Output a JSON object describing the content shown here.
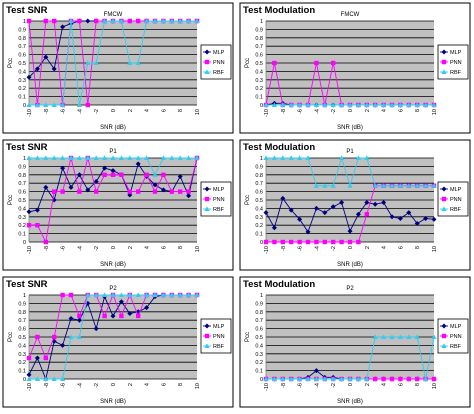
{
  "chart_data": [
    {
      "type": "line",
      "title": "Test SNR",
      "subtitle": "FMCW",
      "xlabel": "SNR (dB)",
      "ylabel": "Pcc",
      "x": [
        -10,
        -9,
        -8,
        -7,
        -6,
        -5,
        -4,
        -3,
        -2,
        -1,
        0,
        1,
        2,
        3,
        4,
        5,
        6,
        7,
        8,
        9,
        10
      ],
      "ylim": [
        0,
        1
      ],
      "yticks": [
        0,
        0.1,
        0.2,
        0.3,
        0.4,
        0.5,
        0.6,
        0.7,
        0.8,
        0.9,
        1
      ],
      "grid": true,
      "legend": "right",
      "series": [
        {
          "name": "MLP",
          "values": [
            0.33,
            0.43,
            0.57,
            0.43,
            0.93,
            0.97,
            1,
            1,
            1,
            1,
            1,
            1,
            1,
            1,
            1,
            1,
            1,
            1,
            1,
            1,
            1
          ]
        },
        {
          "name": "PNN",
          "values": [
            1,
            0,
            1,
            1,
            0,
            1,
            1,
            0,
            1,
            1,
            1,
            1,
            1,
            1,
            1,
            1,
            1,
            1,
            1,
            1,
            1
          ]
        },
        {
          "name": "RBF",
          "values": [
            0,
            0,
            0,
            0,
            0,
            1,
            0,
            0.5,
            0.5,
            1,
            1,
            1,
            0.5,
            0.5,
            1,
            1,
            1,
            1,
            1,
            1,
            1
          ]
        }
      ]
    },
    {
      "type": "line",
      "title": "Test Modulation",
      "subtitle": "FMCW",
      "xlabel": "SNR (dB)",
      "ylabel": "Pcc",
      "x": [
        -10,
        -9,
        -8,
        -7,
        -6,
        -5,
        -4,
        -3,
        -2,
        -1,
        0,
        1,
        2,
        3,
        4,
        5,
        6,
        7,
        8,
        9,
        10
      ],
      "ylim": [
        0,
        1
      ],
      "yticks": [
        0,
        0.1,
        0.2,
        0.3,
        0.4,
        0.5,
        0.6,
        0.7,
        0.8,
        0.9,
        1
      ],
      "grid": true,
      "legend": "right",
      "series": [
        {
          "name": "MLP",
          "values": [
            0,
            0.02,
            0.02,
            0,
            0,
            0,
            0,
            0,
            0,
            0,
            0,
            0,
            0,
            0,
            0,
            0,
            0,
            0,
            0,
            0,
            0
          ]
        },
        {
          "name": "PNN",
          "values": [
            0,
            0.5,
            0,
            0,
            0,
            0,
            0.5,
            0,
            0.5,
            0,
            0,
            0,
            0,
            0,
            0,
            0,
            0,
            0,
            0,
            0,
            0
          ]
        },
        {
          "name": "RBF",
          "values": [
            0,
            0,
            0,
            0,
            0,
            0,
            0,
            0,
            0,
            0,
            0,
            0,
            0,
            0,
            0,
            0,
            0,
            0,
            0,
            0,
            0
          ]
        }
      ]
    },
    {
      "type": "line",
      "title": "Test SNR",
      "subtitle": "P1",
      "xlabel": "SNR (dB)",
      "ylabel": "Pcc",
      "x": [
        -10,
        -9,
        -8,
        -7,
        -6,
        -5,
        -4,
        -3,
        -2,
        -1,
        0,
        1,
        2,
        3,
        4,
        5,
        6,
        7,
        8,
        9,
        10
      ],
      "ylim": [
        0,
        1
      ],
      "yticks": [
        0,
        0.1,
        0.2,
        0.3,
        0.4,
        0.5,
        0.6,
        0.7,
        0.8,
        0.9,
        1
      ],
      "grid": true,
      "legend": "right",
      "series": [
        {
          "name": "MLP",
          "values": [
            0.36,
            0.38,
            0.65,
            0.5,
            0.88,
            0.65,
            0.8,
            0.62,
            0.72,
            0.88,
            0.85,
            0.8,
            0.56,
            0.93,
            0.78,
            0.68,
            0.62,
            0.6,
            0.78,
            0.55,
            1
          ]
        },
        {
          "name": "PNN",
          "values": [
            0.2,
            0.2,
            0,
            0.6,
            0.6,
            1,
            0.6,
            1,
            0.6,
            0.8,
            0.8,
            0.8,
            0.6,
            0.6,
            0.8,
            0.6,
            0.8,
            0.6,
            0.6,
            0.6,
            1
          ]
        },
        {
          "name": "RBF",
          "values": [
            1,
            1,
            1,
            1,
            1,
            1,
            1,
            1,
            1,
            1,
            1,
            1,
            1,
            1,
            1,
            0.8,
            1,
            1,
            1,
            1,
            1
          ]
        }
      ]
    },
    {
      "type": "line",
      "title": "Test Modulation",
      "subtitle": "P1",
      "xlabel": "SNR (dB)",
      "ylabel": "Pcc",
      "x": [
        -10,
        -9,
        -8,
        -7,
        -6,
        -5,
        -4,
        -3,
        -2,
        -1,
        0,
        1,
        2,
        3,
        4,
        5,
        6,
        7,
        8,
        9,
        10
      ],
      "ylim": [
        0,
        1
      ],
      "yticks": [
        0,
        0.1,
        0.2,
        0.3,
        0.4,
        0.5,
        0.6,
        0.7,
        0.8,
        0.9,
        1
      ],
      "grid": true,
      "legend": "right",
      "series": [
        {
          "name": "MLP",
          "values": [
            0.35,
            0.17,
            0.52,
            0.38,
            0.27,
            0.12,
            0.4,
            0.35,
            0.42,
            0.47,
            0.13,
            0.33,
            0.47,
            0.45,
            0.47,
            0.3,
            0.28,
            0.35,
            0.22,
            0.28,
            0.27
          ]
        },
        {
          "name": "PNN",
          "values": [
            0,
            0,
            0,
            0,
            0,
            0,
            0,
            0,
            0,
            0,
            0,
            0,
            0.33,
            0.67,
            0.67,
            0.67,
            0.67,
            0.67,
            0.67,
            0.67,
            0.67
          ]
        },
        {
          "name": "RBF",
          "values": [
            1,
            1,
            1,
            1,
            1,
            1,
            0.67,
            0.67,
            0.67,
            1,
            0.67,
            1,
            1,
            0.67,
            0.67,
            0.67,
            0.67,
            0.67,
            0.67,
            0.67,
            0.67
          ]
        }
      ]
    },
    {
      "type": "line",
      "title": "Test SNR",
      "subtitle": "P2",
      "xlabel": "SNR (dB)",
      "ylabel": "Pcc",
      "x": [
        -10,
        -9,
        -8,
        -7,
        -6,
        -5,
        -4,
        -3,
        -2,
        -1,
        0,
        1,
        2,
        3,
        4,
        5,
        6,
        7,
        8,
        9,
        10
      ],
      "ylim": [
        0,
        1
      ],
      "yticks": [
        0,
        0.1,
        0.2,
        0.3,
        0.4,
        0.5,
        0.6,
        0.7,
        0.8,
        0.9,
        1
      ],
      "grid": true,
      "legend": "right",
      "series": [
        {
          "name": "MLP",
          "values": [
            0.05,
            0.25,
            0,
            0.45,
            0.4,
            0.72,
            0.7,
            0.9,
            0.6,
            0.98,
            0.75,
            0.92,
            0.78,
            0.8,
            0.85,
            0.98,
            1,
            1,
            1,
            1,
            1
          ]
        },
        {
          "name": "PNN",
          "values": [
            0.25,
            0.5,
            0.25,
            0.5,
            1,
            1,
            0.75,
            1,
            1,
            0.75,
            1,
            0.75,
            1,
            0.75,
            1,
            1,
            1,
            1,
            1,
            1,
            1
          ]
        },
        {
          "name": "RBF",
          "values": [
            0,
            0,
            0,
            0,
            0,
            0.5,
            0.5,
            1,
            1,
            1,
            1,
            1,
            1,
            1,
            1,
            1,
            1,
            1,
            1,
            1,
            1
          ]
        }
      ]
    },
    {
      "type": "line",
      "title": "Test Modulation",
      "subtitle": "P2",
      "xlabel": "SNR (dB)",
      "ylabel": "Pcc",
      "x": [
        -10,
        -9,
        -8,
        -7,
        -6,
        -5,
        -4,
        -3,
        -2,
        -1,
        0,
        1,
        2,
        3,
        4,
        5,
        6,
        7,
        8,
        9,
        10
      ],
      "ylim": [
        0,
        1
      ],
      "yticks": [
        0,
        0.1,
        0.2,
        0.3,
        0.4,
        0.5,
        0.6,
        0.7,
        0.8,
        0.9,
        1
      ],
      "grid": true,
      "legend": "right",
      "series": [
        {
          "name": "MLP",
          "values": [
            0,
            0,
            0,
            0,
            0,
            0.02,
            0.1,
            0.02,
            0.02,
            0,
            0,
            0,
            0,
            0,
            0,
            0,
            0,
            0,
            0,
            0,
            0
          ]
        },
        {
          "name": "PNN",
          "values": [
            0,
            0,
            0,
            0,
            0,
            0,
            0,
            0,
            0,
            0,
            0,
            0,
            0,
            0,
            0,
            0,
            0,
            0,
            0,
            0,
            0
          ]
        },
        {
          "name": "RBF",
          "values": [
            0,
            0,
            0,
            0,
            0,
            0,
            0,
            0,
            0,
            0,
            0,
            0,
            0,
            0.5,
            0.5,
            0.5,
            0.5,
            0.5,
            0.5,
            0,
            0.5
          ]
        }
      ]
    }
  ],
  "x_tick_labels": [
    "-10",
    "-8",
    "-6",
    "-4",
    "-2",
    "0",
    "2",
    "4",
    "6",
    "8",
    "10"
  ],
  "series_styles": [
    {
      "color": "#000080",
      "marker": "diamond"
    },
    {
      "color": "#ff00ff",
      "marker": "square"
    },
    {
      "color": "#33ccee",
      "marker": "triangle"
    }
  ]
}
